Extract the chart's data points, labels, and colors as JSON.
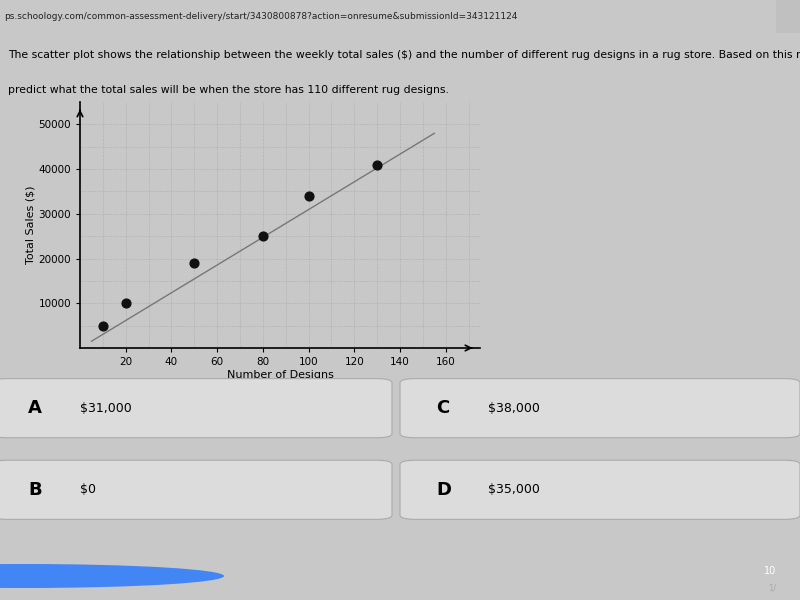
{
  "scatter_x": [
    10,
    20,
    50,
    80,
    100,
    130
  ],
  "scatter_y": [
    5000,
    10000,
    19000,
    25000,
    34000,
    41000
  ],
  "line_x": [
    5,
    155
  ],
  "line_y": [
    1500,
    48000
  ],
  "xlabel": "Number of Designs",
  "ylabel": "Total Sales ($)",
  "xticks": [
    20,
    40,
    60,
    80,
    100,
    120,
    140,
    160
  ],
  "yticks": [
    10000,
    20000,
    30000,
    40000,
    50000
  ],
  "xlim": [
    0,
    175
  ],
  "ylim": [
    0,
    55000
  ],
  "dot_color": "#111111",
  "line_color": "#777777",
  "bg_color": "#c8c8c8",
  "plot_bg": "#c8c8c8",
  "url_text": "ps.schoology.com/common-assessment-delivery/start/3430800878?action=onresume&submissionId=343121124",
  "title_line1": "The scatter plot shows the relationship between the weekly total sales ($) and the number of different rug designs in a rug store. Based on this relationship,",
  "title_line2": "predict what the total sales will be when the store has 110 different rug designs.",
  "opt_A_letter": "A",
  "opt_A_value": "$31,000",
  "opt_B_letter": "B",
  "opt_B_value": "$0",
  "opt_C_letter": "C",
  "opt_C_value": "$38,000",
  "opt_D_letter": "D",
  "opt_D_value": "$35,000"
}
